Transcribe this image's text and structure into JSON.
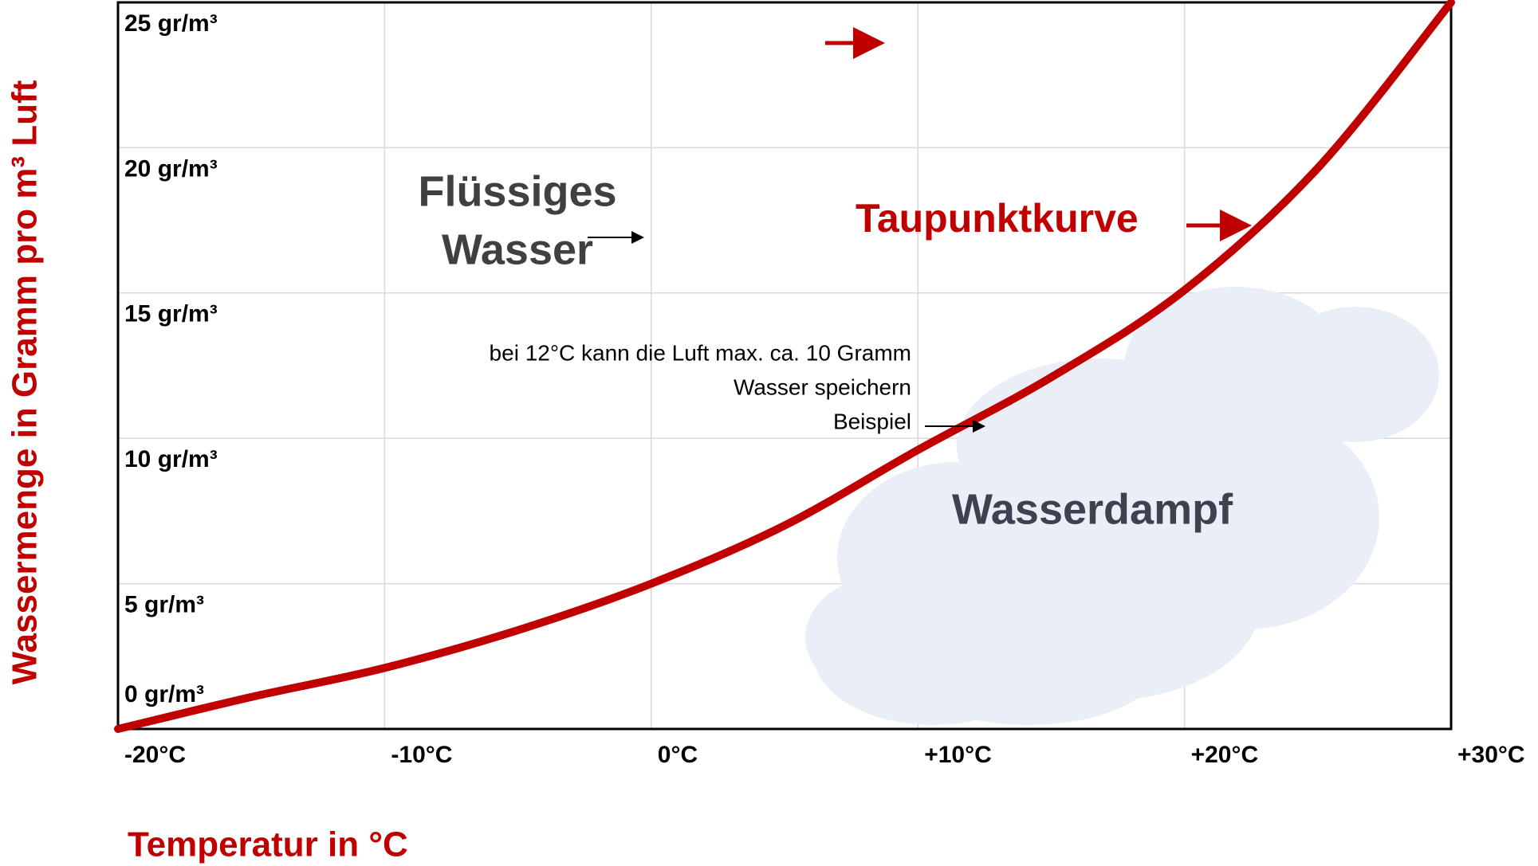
{
  "chart_data": {
    "type": "line",
    "y_label": "Wassermenge in Gramm pro m³ Luft",
    "x_label": "Temperatur in °C",
    "x": [
      -20,
      -15,
      -10,
      -5,
      0,
      5,
      10,
      15,
      20,
      25,
      30
    ],
    "series": [
      {
        "name": "Taupunktkurve",
        "color": "#c00000",
        "values": [
          0,
          1.1,
          2.1,
          3.4,
          5.0,
          7.0,
          9.6,
          12.1,
          15.1,
          19.3,
          25
        ]
      }
    ],
    "xlim": [
      -20,
      30
    ],
    "xticks": [
      {
        "value": -20,
        "label": "-20°C"
      },
      {
        "value": -10,
        "label": "-10°C"
      },
      {
        "value": 0,
        "label": "0°C"
      },
      {
        "value": 10,
        "label": "+10°C"
      },
      {
        "value": 20,
        "label": "+20°C"
      },
      {
        "value": 30,
        "label": "+30°C"
      }
    ],
    "ylim": [
      0,
      25
    ],
    "yticks": [
      {
        "value": 0,
        "label": "0 gr/m³"
      },
      {
        "value": 5,
        "label": "5 gr/m³"
      },
      {
        "value": 10,
        "label": "10 gr/m³"
      },
      {
        "value": 15,
        "label": "15 gr/m³"
      },
      {
        "value": 20,
        "label": "20 gr/m³"
      },
      {
        "value": 25,
        "label": "25 gr/m³"
      }
    ],
    "grid": true,
    "annotations": [
      "Flüssiges",
      "Wasser",
      "Wasserdampf",
      "bei 12°C kann die Luft max. ca. 10 Gramm",
      "Wasser speichern",
      "Beispiel"
    ]
  }
}
